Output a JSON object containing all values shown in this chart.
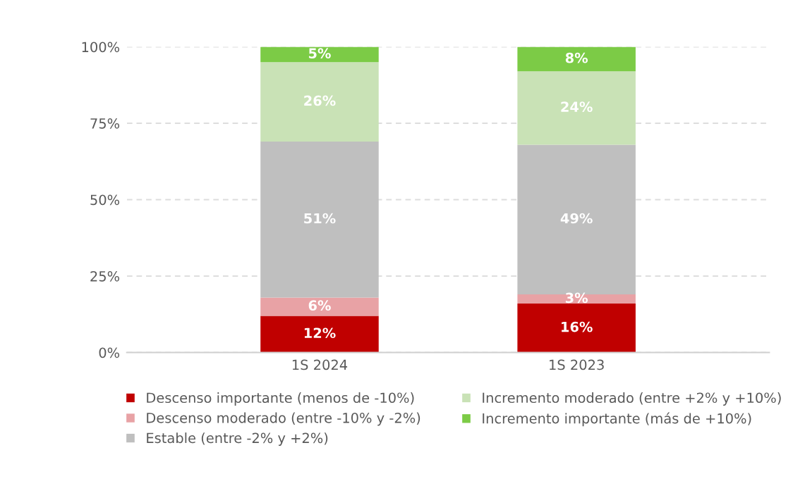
{
  "chart_data": {
    "type": "bar",
    "stacked": true,
    "categories": [
      "1S 2024",
      "1S 2023"
    ],
    "series": [
      {
        "name": "Descenso importante (menos de -10%)",
        "color": "#c00000",
        "values": [
          12,
          16
        ],
        "value_labels": [
          "12%",
          "16%"
        ]
      },
      {
        "name": "Descenso moderado (entre -10% y -2%)",
        "color": "#e8a2a5",
        "values": [
          6,
          3
        ],
        "value_labels": [
          "6%",
          "3%"
        ]
      },
      {
        "name": "Estable (entre -2% y +2%)",
        "color": "#bfbfbf",
        "values": [
          51,
          49
        ],
        "value_labels": [
          "51%",
          "49%"
        ]
      },
      {
        "name": "Incremento moderado (entre +2% y +10%)",
        "color": "#c9e2b6",
        "values": [
          26,
          24
        ],
        "value_labels": [
          "26%",
          "24%"
        ]
      },
      {
        "name": "Incremento importante (más de +10%)",
        "color": "#7ccb46",
        "values": [
          5,
          8
        ],
        "value_labels": [
          "5%",
          "8%"
        ]
      }
    ],
    "ylim": [
      0,
      100
    ],
    "yticks": [
      {
        "value": 0,
        "label": "0%"
      },
      {
        "value": 25,
        "label": "25%"
      },
      {
        "value": 50,
        "label": "50%"
      },
      {
        "value": 75,
        "label": "75%"
      },
      {
        "value": 100,
        "label": "100%"
      }
    ],
    "grid": "y",
    "legend": "bottom"
  }
}
